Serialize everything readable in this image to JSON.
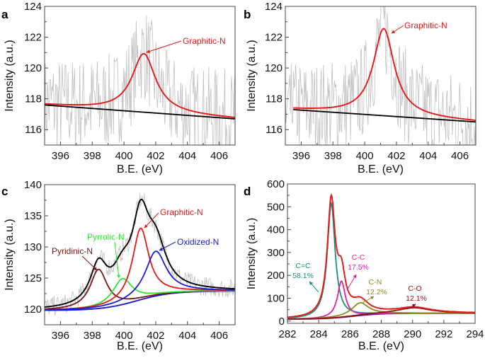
{
  "chart_data": [
    {
      "panel_label": "a",
      "type": "line",
      "xlabel": "B.E. (eV)",
      "ylabel": "Intensity (a.u.)",
      "xlim": [
        395,
        407
      ],
      "ylim": [
        115,
        124
      ],
      "xticks": [
        396,
        398,
        400,
        402,
        404,
        406
      ],
      "yticks": [
        116,
        118,
        120,
        122,
        124
      ],
      "grid": false,
      "raw_data": {
        "color": "#c0c0c0",
        "range": [
          115,
          124
        ]
      },
      "background": {
        "color": "#000000",
        "x": [
          395,
          407
        ],
        "y": [
          117.6,
          116.7
        ]
      },
      "peaks": [
        {
          "name": "Graphitic-N",
          "color": "#e81818",
          "center": 401.25,
          "height": 3.8,
          "fwhm": 1.8
        }
      ],
      "envelope": {
        "color": "#e81818",
        "x_start": 395
      },
      "annotations": [
        {
          "text": "Graphitic-N",
          "color": "#e81818"
        }
      ]
    },
    {
      "panel_label": "b",
      "type": "line",
      "xlabel": "B.E. (eV)",
      "ylabel": "Intensity (a.u.)",
      "xlim": [
        395,
        407
      ],
      "ylim": [
        115,
        124
      ],
      "xticks": [
        396,
        398,
        400,
        402,
        404,
        406
      ],
      "yticks": [
        116,
        118,
        120,
        122,
        124
      ],
      "grid": false,
      "raw_data": {
        "color": "#c0c0c0",
        "range": [
          115,
          124
        ]
      },
      "background": {
        "color": "#000000",
        "x": [
          395.5,
          407
        ],
        "y": [
          117.3,
          116.5
        ]
      },
      "peaks": [
        {
          "name": "Graphitic-N",
          "color": "#e81818",
          "center": 401.2,
          "height": 5.65,
          "fwhm": 1.6
        }
      ],
      "envelope": {
        "color": "#e81818",
        "x_start": 395.5
      },
      "annotations": [
        {
          "text": "Graphitic-N",
          "color": "#e81818"
        }
      ]
    },
    {
      "panel_label": "c",
      "type": "line",
      "xlabel": "B.E. (eV)",
      "ylabel": "Intensity (a.u.)",
      "xlim": [
        395,
        407
      ],
      "ylim": [
        117.5,
        140
      ],
      "xticks": [
        396,
        398,
        400,
        402,
        404,
        406
      ],
      "yticks": [
        120,
        125,
        130,
        135,
        140
      ],
      "grid": false,
      "raw_data": {
        "color": "#c0c0c0"
      },
      "background": {
        "color": "#1a1adc",
        "low": 119.8,
        "high": 122.9,
        "step_center": 400.8
      },
      "peaks": [
        {
          "name": "Pyridinic-N",
          "color": "#7a1414",
          "center": 398.4,
          "peak_value": 126.4,
          "fwhm": 1.3
        },
        {
          "name": "Pyrrolic-N",
          "color": "#2ee82e",
          "center": 399.9,
          "peak_value": 124.9,
          "fwhm": 1.5
        },
        {
          "name": "Graphitic-N",
          "color": "#e81818",
          "center": 401.05,
          "peak_value": 133.0,
          "fwhm": 1.25
        },
        {
          "name": "Oxidized-N",
          "color": "#1a1adc",
          "center": 402.0,
          "peak_value": 129.3,
          "fwhm": 1.6
        }
      ],
      "envelope": {
        "color": "#000000"
      },
      "annotations": [
        {
          "text": "Graphitic-N",
          "color": "#e81818"
        },
        {
          "text": "Pyrrolic-N",
          "color": "#2ee82e"
        },
        {
          "text": "Pyridinic-N",
          "color": "#7a1414"
        },
        {
          "text": "Oxidized-N",
          "color": "#1a1adc"
        }
      ]
    },
    {
      "panel_label": "d",
      "type": "line",
      "xlabel": "B.E. (eV)",
      "ylabel": "Intensity (a.u.)",
      "xlim": [
        282,
        294
      ],
      "ylim": [
        -10,
        600
      ],
      "xticks": [
        282,
        284,
        286,
        288,
        290,
        292,
        294
      ],
      "yticks": [
        0,
        100,
        200,
        300,
        400,
        500,
        600
      ],
      "grid": false,
      "raw_data": {
        "color": "#c8c8c8"
      },
      "background": {
        "color": "#5a20a0",
        "low": 8,
        "high": 34,
        "step_center": 286.2
      },
      "peaks": [
        {
          "name": "C=C",
          "percent": "58.1%",
          "color": "#1a8f7a",
          "center": 284.8,
          "peak_value": 515,
          "fwhm": 0.6
        },
        {
          "name": "C-C",
          "percent": "17.5%",
          "color": "#e81ea8",
          "center": 285.45,
          "peak_value": 175,
          "fwhm": 0.6
        },
        {
          "name": "C-N",
          "percent": "12.2%",
          "color": "#8c8c1e",
          "center": 286.65,
          "peak_value": 80,
          "fwhm": 1.3
        },
        {
          "name": "C-O",
          "percent": "12.1%",
          "color": "#8c1414",
          "center": 290.1,
          "peak_value": 58,
          "fwhm": 2.6
        }
      ],
      "envelope": {
        "color": "#e81818"
      },
      "annotations": [
        {
          "text": "C=C",
          "sub": "58.1%",
          "color": "#1a8f7a"
        },
        {
          "text": "C-C",
          "sub": "17.5%",
          "color": "#e81ea8"
        },
        {
          "text": "C-N",
          "sub": "12.2%",
          "color": "#8c8c1e"
        },
        {
          "text": "C-O",
          "sub": "12.1%",
          "color": "#8c1414"
        }
      ]
    }
  ]
}
